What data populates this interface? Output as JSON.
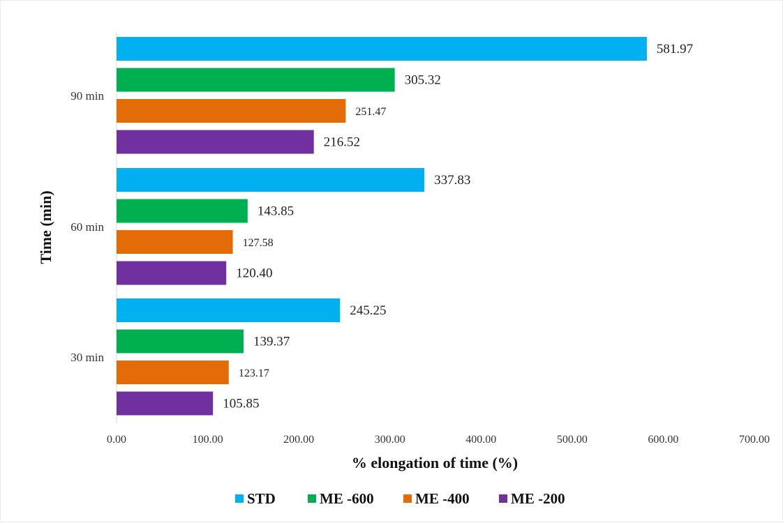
{
  "chart_data": {
    "type": "bar",
    "orientation": "horizontal",
    "categories": [
      "30 min",
      "60 min",
      "90 min"
    ],
    "series": [
      {
        "name": "STD",
        "color": "#00b0f0",
        "values": [
          245.25,
          337.83,
          581.97
        ],
        "labels": [
          "245.25",
          "337.83",
          "581.97"
        ]
      },
      {
        "name": "ME -600",
        "color": "#00b050",
        "values": [
          139.37,
          143.85,
          305.32
        ],
        "labels": [
          "139.37",
          "143.85",
          "305.32"
        ]
      },
      {
        "name": "ME -400",
        "color": "#e36c09",
        "values": [
          123.17,
          127.58,
          251.47
        ],
        "labels": [
          "123.17",
          "127.58",
          "251.47"
        ]
      },
      {
        "name": "ME -200",
        "color": "#7030a0",
        "values": [
          105.85,
          120.4,
          216.52
        ],
        "labels": [
          "105.85",
          "120.40",
          "216.52"
        ]
      }
    ],
    "xlabel": "% elongation of time (%)",
    "ylabel": "Time (min)",
    "xlim": [
      0,
      700
    ],
    "xticks": [
      "0.00",
      "100.00",
      "200.00",
      "300.00",
      "400.00",
      "500.00",
      "600.00",
      "700.00"
    ],
    "grid": false,
    "legend": "bottom"
  }
}
